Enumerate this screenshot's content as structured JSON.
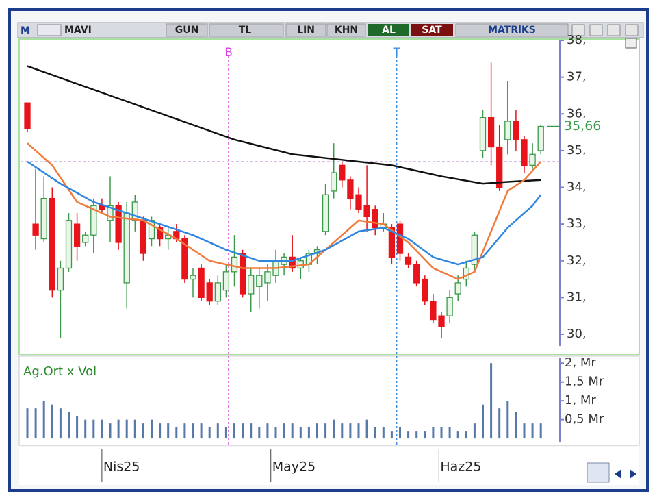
{
  "toolbar": {
    "symbol": "MAVI",
    "period": "GUN",
    "currency": "TL",
    "scale": "LIN",
    "chart_style": "KHN",
    "buy": "AL",
    "sell": "SAT",
    "brand": "MATRiKS"
  },
  "chart_data": [
    {
      "type": "candlestick",
      "up_color": "#3a9a4a",
      "down_color": "#e8141c",
      "open": [
        36.3,
        33.0,
        32.6,
        33.7,
        31.2,
        31.8,
        33.0,
        32.5,
        32.7,
        33.5,
        33.1,
        33.5,
        31.4,
        33.1,
        33.1,
        32.6,
        32.9,
        32.6,
        32.8,
        32.6,
        31.5,
        31.8,
        31.4,
        30.9,
        31.2,
        31.7,
        32.2,
        31.1,
        31.3,
        31.4,
        31.6,
        31.9,
        32.1,
        31.8,
        31.9,
        32.2,
        32.8,
        33.9,
        34.6,
        34.2,
        33.8,
        33.5,
        33.4,
        32.9,
        32.9,
        33.0,
        32.1,
        31.9,
        31.5,
        30.9,
        30.5,
        30.5,
        31.1,
        31.5,
        31.9,
        35.0,
        35.9,
        35.1,
        35.3,
        35.8,
        35.3,
        34.6,
        35.0
      ],
      "high": [
        36.3,
        34.5,
        34.3,
        34.0,
        32.0,
        33.3,
        33.3,
        32.8,
        33.7,
        33.7,
        34.3,
        33.6,
        33.6,
        33.8,
        33.2,
        33.2,
        33.0,
        32.9,
        33.0,
        32.7,
        31.8,
        31.9,
        31.5,
        31.6,
        31.9,
        32.7,
        32.3,
        31.8,
        31.8,
        31.9,
        32.3,
        32.2,
        32.7,
        32.1,
        32.3,
        32.4,
        34.1,
        35.2,
        34.7,
        34.3,
        34.0,
        34.6,
        33.5,
        33.3,
        33.0,
        33.1,
        32.2,
        32.0,
        31.6,
        31.1,
        30.6,
        31.2,
        31.6,
        32.0,
        32.8,
        36.1,
        37.4,
        35.7,
        36.9,
        36.1,
        35.4,
        35.2,
        35.7
      ],
      "low": [
        35.5,
        32.3,
        32.5,
        31.0,
        29.9,
        31.7,
        32.0,
        32.4,
        32.2,
        33.3,
        32.5,
        32.3,
        30.7,
        32.8,
        32.0,
        32.4,
        32.4,
        32.3,
        32.5,
        31.4,
        31.0,
        30.9,
        30.8,
        30.8,
        31.0,
        31.3,
        31.0,
        30.6,
        30.7,
        30.9,
        31.4,
        31.6,
        31.7,
        31.5,
        31.7,
        31.9,
        32.7,
        33.7,
        34.0,
        33.4,
        33.3,
        32.8,
        32.7,
        32.8,
        31.9,
        32.0,
        31.8,
        31.3,
        30.8,
        30.3,
        29.9,
        30.3,
        30.9,
        31.3,
        31.7,
        34.8,
        34.6,
        33.9,
        34.9,
        35.0,
        34.4,
        34.5,
        34.9
      ],
      "close": [
        35.6,
        32.7,
        33.7,
        31.2,
        31.8,
        33.1,
        32.4,
        32.7,
        33.5,
        33.4,
        33.5,
        32.5,
        33.3,
        33.6,
        32.2,
        33.1,
        32.6,
        32.7,
        32.6,
        31.5,
        31.6,
        31.0,
        30.9,
        31.4,
        31.7,
        32.1,
        31.1,
        31.6,
        31.6,
        31.7,
        32.0,
        32.1,
        31.8,
        32.0,
        32.2,
        32.3,
        33.8,
        34.4,
        34.2,
        33.7,
        33.4,
        33.2,
        32.9,
        33.0,
        32.1,
        32.2,
        31.9,
        31.4,
        30.9,
        30.4,
        30.2,
        31.0,
        31.4,
        31.8,
        32.7,
        35.9,
        35.1,
        34.0,
        35.8,
        35.3,
        34.6,
        34.9,
        35.66
      ],
      "last_close_label": "35,66",
      "lines": [
        {
          "color": "#111111",
          "x": [
            0,
            10,
            20,
            25,
            32,
            38,
            44,
            50,
            55,
            58,
            62
          ],
          "values": [
            37.3,
            36.5,
            35.7,
            35.3,
            34.9,
            34.75,
            34.6,
            34.3,
            34.1,
            34.15,
            34.2
          ]
        },
        {
          "color": "#f07a3a",
          "x": [
            0,
            3,
            6,
            10,
            14,
            18,
            22,
            26,
            30,
            34,
            37,
            40,
            43,
            46,
            49,
            52,
            54,
            56,
            58,
            60,
            62
          ],
          "values": [
            35.2,
            34.6,
            33.6,
            33.2,
            33.1,
            32.6,
            32.0,
            31.8,
            31.8,
            31.9,
            32.5,
            33.1,
            33.0,
            32.5,
            31.8,
            31.5,
            31.7,
            32.8,
            33.9,
            34.2,
            34.7
          ]
        },
        {
          "color": "#2f86e0",
          "x": [
            0,
            4,
            8,
            12,
            16,
            20,
            24,
            28,
            32,
            36,
            40,
            43,
            46,
            49,
            52,
            55,
            58,
            61,
            62
          ],
          "values": [
            34.7,
            34.1,
            33.6,
            33.3,
            33.0,
            32.7,
            32.3,
            32.0,
            32.0,
            32.3,
            32.8,
            32.9,
            32.6,
            32.1,
            31.9,
            32.1,
            32.9,
            33.5,
            33.8
          ]
        }
      ],
      "reference_line": 34.7,
      "signals": [
        {
          "value": 24.3,
          "label": "B",
          "color": "#e040e0"
        },
        {
          "value": 44.6,
          "label": "T",
          "color": "#3b8ee0"
        }
      ],
      "ylim": [
        29.44,
        38.02
      ],
      "yticks": [
        {
          "value": 30,
          "label": "30,"
        },
        {
          "value": 31,
          "label": "31,"
        },
        {
          "value": 32,
          "label": "32,"
        },
        {
          "value": 33,
          "label": "33,"
        },
        {
          "value": 34,
          "label": "34,"
        },
        {
          "value": 35,
          "label": "35,"
        },
        {
          "value": 36,
          "label": "36,"
        },
        {
          "value": 37,
          "label": "37,"
        },
        {
          "value": 38,
          "label": "38,"
        }
      ],
      "xticks": [
        {
          "value": 9,
          "label": "Nis25"
        },
        {
          "value": 29.4,
          "label": "May25"
        },
        {
          "value": 49.7,
          "label": "Haz25"
        }
      ]
    },
    {
      "type": "bar",
      "title": "Ag.Ort x Vol",
      "color": "#5878a8",
      "values": [
        0.8,
        0.8,
        1.0,
        0.9,
        0.8,
        0.7,
        0.6,
        0.5,
        0.5,
        0.5,
        0.4,
        0.5,
        0.5,
        0.5,
        0.4,
        0.5,
        0.4,
        0.4,
        0.3,
        0.4,
        0.4,
        0.4,
        0.3,
        0.4,
        0.3,
        0.4,
        0.4,
        0.4,
        0.3,
        0.4,
        0.3,
        0.4,
        0.4,
        0.3,
        0.3,
        0.4,
        0.4,
        0.5,
        0.4,
        0.4,
        0.4,
        0.5,
        0.3,
        0.3,
        0.2,
        0.3,
        0.2,
        0.2,
        0.2,
        0.3,
        0.3,
        0.3,
        0.2,
        0.2,
        0.4,
        0.9,
        2.0,
        0.8,
        1.0,
        0.7,
        0.4,
        0.4,
        0.4
      ],
      "ylim": [
        -0.18,
        2.15
      ],
      "yticks": [
        {
          "value": 0.5,
          "label": "0,5 Mr"
        },
        {
          "value": 1,
          "label": "1, Mr"
        },
        {
          "value": 1.5,
          "label": "1,5 Mr"
        },
        {
          "value": 2,
          "label": "2, Mr"
        }
      ]
    }
  ]
}
